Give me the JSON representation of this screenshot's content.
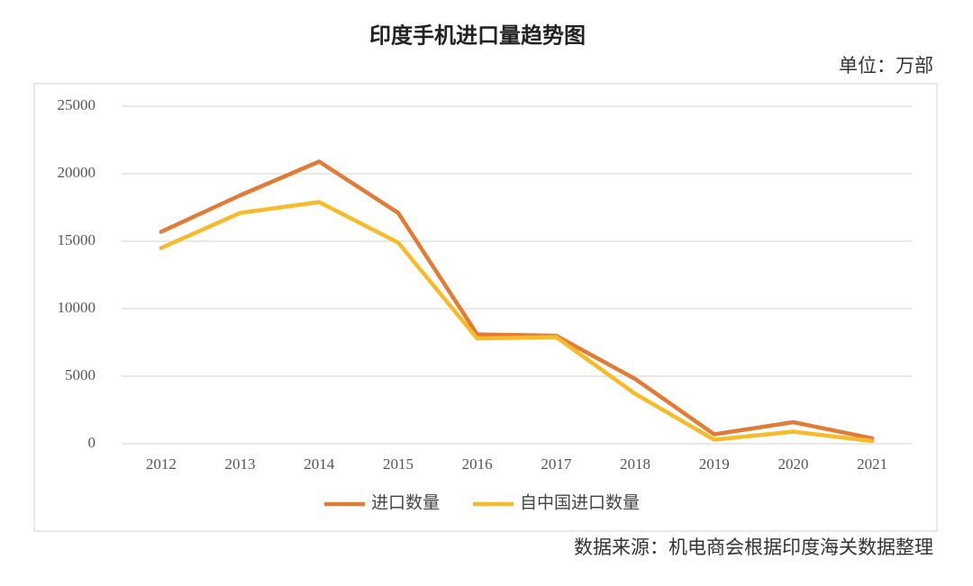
{
  "chart_data": {
    "type": "line",
    "title": "印度手机进口量趋势图",
    "subtitle": "单位：万部",
    "source": "数据来源：机电商会根据印度海关数据整理",
    "categories": [
      "2012",
      "2013",
      "2014",
      "2015",
      "2016",
      "2017",
      "2018",
      "2019",
      "2020",
      "2021"
    ],
    "series": [
      {
        "name": "进口数量",
        "color": "#e27b35",
        "values": [
          15700,
          18400,
          20900,
          17100,
          8100,
          8000,
          4800,
          700,
          1600,
          400
        ]
      },
      {
        "name": "自中国进口数量",
        "color": "#f7bb2a",
        "values": [
          14500,
          17100,
          17900,
          14900,
          7800,
          7900,
          3700,
          300,
          900,
          200
        ]
      }
    ],
    "ylim": [
      0,
      25000
    ],
    "yticks": [
      0,
      5000,
      10000,
      15000,
      20000,
      25000
    ],
    "grid": true,
    "legend": "bottom"
  }
}
